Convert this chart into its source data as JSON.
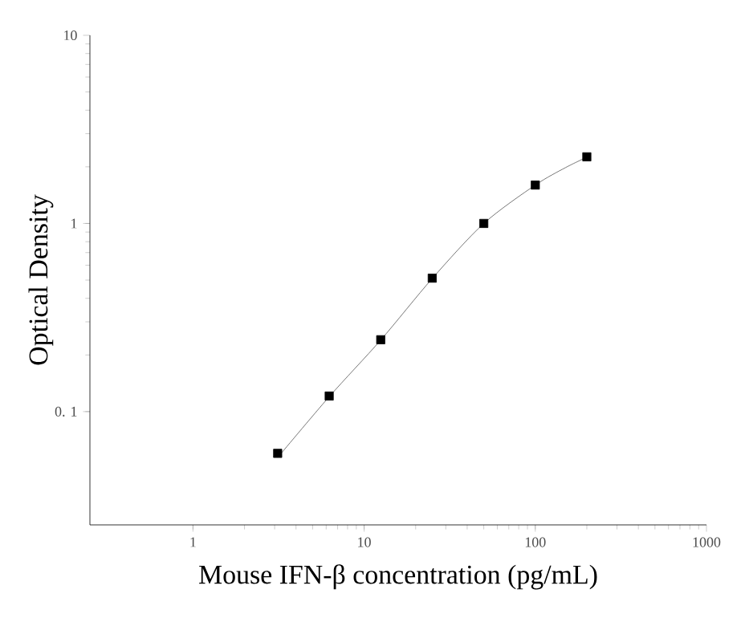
{
  "chart_data": {
    "type": "scatter",
    "xlabel": "Mouse IFN-β concentration (pg/mL)",
    "ylabel": "Optical Density",
    "log": "xy",
    "legend": false,
    "grid": false,
    "xlim": [
      0.25,
      1000
    ],
    "xticks": [
      1,
      10,
      100,
      1000
    ],
    "ylim": [
      0.025,
      10
    ],
    "yticks": [
      {
        "value": 0.1,
        "label": "0. 1"
      },
      1,
      10
    ],
    "series": [
      {
        "marker": "square",
        "color": "#000000",
        "x": [
          3.125,
          6.25,
          12.5,
          25,
          50,
          100,
          200
        ],
        "values": [
          0.06,
          0.121,
          0.241,
          0.512,
          1.0,
          1.6,
          2.26
        ]
      },
      {
        "type": "line",
        "marker": "none",
        "color": "#555555",
        "x": [
          3.125,
          6.25,
          12.5,
          25,
          50,
          100,
          150,
          200
        ],
        "values": [
          0.057,
          0.12,
          0.24,
          0.51,
          1.0,
          1.6,
          1.98,
          2.25
        ]
      }
    ]
  }
}
